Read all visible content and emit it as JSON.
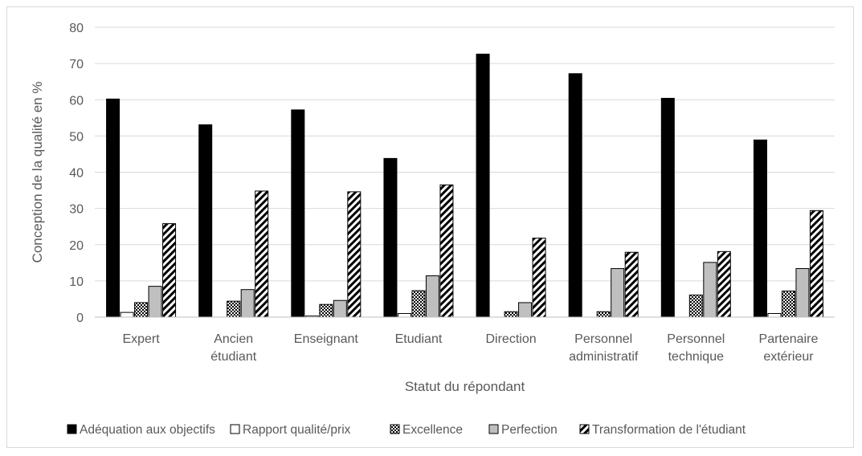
{
  "chart_data": {
    "type": "bar",
    "title": "",
    "xlabel": "Statut du répondant",
    "ylabel": "Conception de la qualité en %",
    "ylim": [
      0,
      80
    ],
    "yticks": [
      0,
      10,
      20,
      30,
      40,
      50,
      60,
      70,
      80
    ],
    "grid": true,
    "legend_position": "bottom",
    "categories": [
      [
        "Expert"
      ],
      [
        "Ancien",
        "étudiant"
      ],
      [
        "Enseignant"
      ],
      [
        "Etudiant"
      ],
      [
        "Direction"
      ],
      [
        "Personnel",
        "administratif"
      ],
      [
        "Personnel",
        "technique"
      ],
      [
        "Partenaire",
        "extérieur"
      ]
    ],
    "series": [
      {
        "name": "Adéquation aux objectifs",
        "pattern": "solid-black",
        "values": [
          60.2,
          53.1,
          57.2,
          43.8,
          72.6,
          67.2,
          60.4,
          48.9
        ]
      },
      {
        "name": "Rapport qualité/prix",
        "pattern": "white",
        "values": [
          1.3,
          0.0,
          0.3,
          1.0,
          0.0,
          0.0,
          0.0,
          1.0
        ]
      },
      {
        "name": "Excellence",
        "pattern": "checker",
        "values": [
          4.0,
          4.4,
          3.5,
          7.3,
          1.5,
          1.5,
          6.1,
          7.2
        ]
      },
      {
        "name": "Perfection",
        "pattern": "grey",
        "values": [
          8.5,
          7.6,
          4.6,
          11.4,
          4.0,
          13.4,
          15.1,
          13.4
        ]
      },
      {
        "name": "Transformation de l'étudiant",
        "pattern": "diagonal",
        "values": [
          25.8,
          34.8,
          34.6,
          36.5,
          21.8,
          17.9,
          18.1,
          29.4
        ]
      }
    ]
  }
}
